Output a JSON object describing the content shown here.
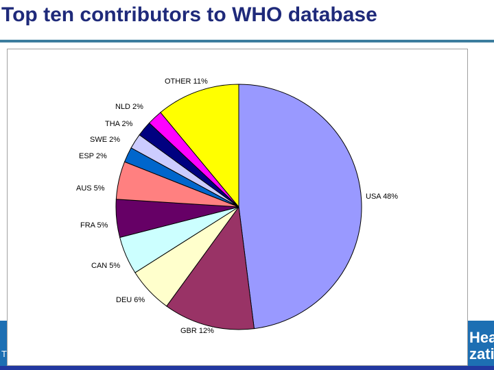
{
  "slide": {
    "title": "Top ten contributors to WHO database",
    "footer_left": "T",
    "logo_line1": "Hea",
    "logo_line2": "zati"
  },
  "colors": {
    "title": "#1f2a7a",
    "rule": "#3c7d9e",
    "footer": "#1d6fb3"
  },
  "chart_data": {
    "type": "pie",
    "title": "",
    "legend": "none",
    "start": "12 o'clock, clockwise",
    "slices": [
      {
        "label": "USA 48%",
        "value": 48,
        "color": "#9999ff"
      },
      {
        "label": "GBR 12%",
        "value": 12,
        "color": "#993366"
      },
      {
        "label": "DEU 6%",
        "value": 6,
        "color": "#ffffcc"
      },
      {
        "label": "CAN 5%",
        "value": 5,
        "color": "#ccffff"
      },
      {
        "label": "FRA 5%",
        "value": 5,
        "color": "#660066"
      },
      {
        "label": "AUS 5%",
        "value": 5,
        "color": "#ff8080"
      },
      {
        "label": "ESP 2%",
        "value": 2,
        "color": "#0066cc"
      },
      {
        "label": "SWE 2%",
        "value": 2,
        "color": "#ccccff"
      },
      {
        "label": "THA 2%",
        "value": 2,
        "color": "#000080"
      },
      {
        "label": "NLD 2%",
        "value": 2,
        "color": "#ff00ff"
      },
      {
        "label": "OTHER 11%",
        "value": 11,
        "color": "#ffff00"
      }
    ]
  }
}
